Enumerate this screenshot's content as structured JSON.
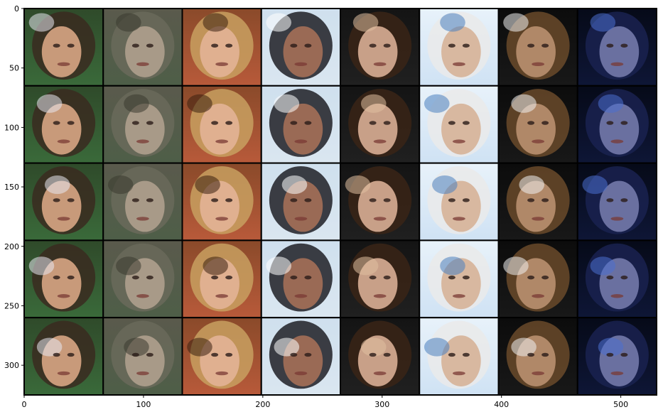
{
  "figure": {
    "grid": {
      "rows": 5,
      "cols": 8
    },
    "xlim": [
      0,
      530
    ],
    "ylim": [
      325,
      0
    ],
    "x_ticks": [
      {
        "value": 0,
        "label": "0"
      },
      {
        "value": 100,
        "label": "100"
      },
      {
        "value": 200,
        "label": "200"
      },
      {
        "value": 300,
        "label": "300"
      },
      {
        "value": 400,
        "label": "400"
      },
      {
        "value": 500,
        "label": "500"
      }
    ],
    "y_ticks": [
      {
        "value": 0,
        "label": "0"
      },
      {
        "value": 50,
        "label": "50"
      },
      {
        "value": 100,
        "label": "100"
      },
      {
        "value": 150,
        "label": "150"
      },
      {
        "value": 200,
        "label": "200"
      },
      {
        "value": 250,
        "label": "250"
      },
      {
        "value": 300,
        "label": "300"
      }
    ],
    "columns": [
      {
        "bg_top": "#2f4a2a",
        "bg_bottom": "#3a6a3a",
        "skin": "#c89a7a",
        "hair": "#3a2a20",
        "accent": "#e8e8f0"
      },
      {
        "bg_top": "#5a5a4c",
        "bg_bottom": "#4e5e48",
        "skin": "#a89a88",
        "hair": "#6a6a5a",
        "accent": "#3a3a30"
      },
      {
        "bg_top": "#8a4a2a",
        "bg_bottom": "#b85a3a",
        "skin": "#e0b090",
        "hair": "#c8a060",
        "accent": "#3a2010"
      },
      {
        "bg_top": "#cfe0ee",
        "bg_bottom": "#dae6f0",
        "skin": "#9a6a55",
        "hair": "#1e1e24",
        "accent": "#ffffff"
      },
      {
        "bg_top": "#141414",
        "bg_bottom": "#202020",
        "skin": "#c8a088",
        "hair": "#3a2416",
        "accent": "#e0c0a0"
      },
      {
        "bg_top": "#e8f2fa",
        "bg_bottom": "#cfe2f4",
        "skin": "#d8b8a0",
        "hair": "#eaeaea",
        "accent": "#4a80c0"
      },
      {
        "bg_top": "#0c0c0c",
        "bg_bottom": "#181818",
        "skin": "#b08868",
        "hair": "#6a4a2a",
        "accent": "#f0f0f0"
      },
      {
        "bg_top": "#060a18",
        "bg_bottom": "#0e1636",
        "skin": "#6a70a0",
        "hair": "#1a2250",
        "accent": "#4a70d0"
      }
    ]
  }
}
